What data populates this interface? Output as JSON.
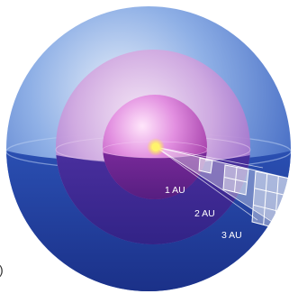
{
  "labels": {
    "au1": "1 AU",
    "au2": "2 AU",
    "au3": "3 AU",
    "edge_mark": ")"
  },
  "colors": {
    "outer_shell": "#4a72c8",
    "outer_lower": "#1e3a9a",
    "middle_shell": "#b58ad8",
    "middle_lower": "#3a2a8f",
    "inner_sphere": "#c060c8",
    "inner_lower": "#5a1f86",
    "sun": "#ffe95a",
    "grid": "#ffffff",
    "label_text": "#ffffff"
  }
}
